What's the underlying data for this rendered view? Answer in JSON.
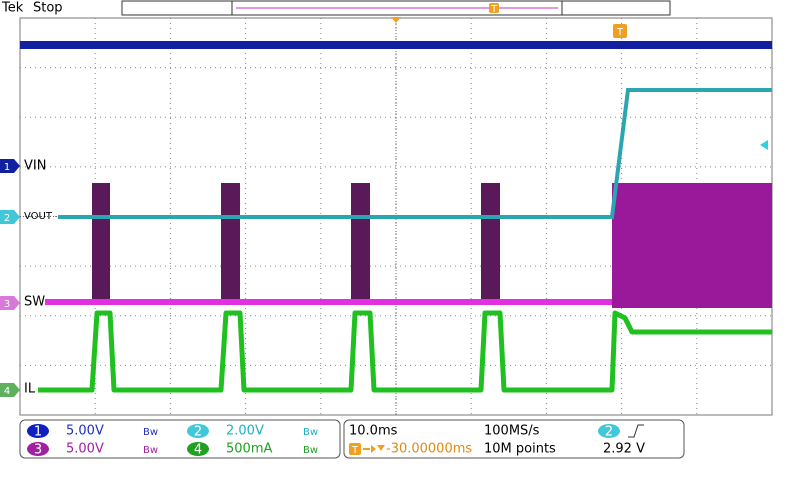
{
  "header": {
    "brand": "Tek",
    "status": "Stop"
  },
  "channels": [
    {
      "number": "1",
      "label": "VIN",
      "scale": "5.00V",
      "bandwidth": "Bw"
    },
    {
      "number": "2",
      "label": "VOUT",
      "scale": "2.00V",
      "bandwidth": "Bw"
    },
    {
      "number": "3",
      "label": "SW",
      "scale": "5.00V",
      "bandwidth": "Bw"
    },
    {
      "number": "4",
      "label": "IL",
      "scale": "500mA",
      "bandwidth": "Bw"
    }
  ],
  "timebase": {
    "scale": "10.0ms",
    "sample_rate": "100MS/s",
    "position": "-30.00000ms",
    "record_length": "10M points"
  },
  "trigger": {
    "marker": "T",
    "source": "2",
    "level": "2.92 V"
  }
}
